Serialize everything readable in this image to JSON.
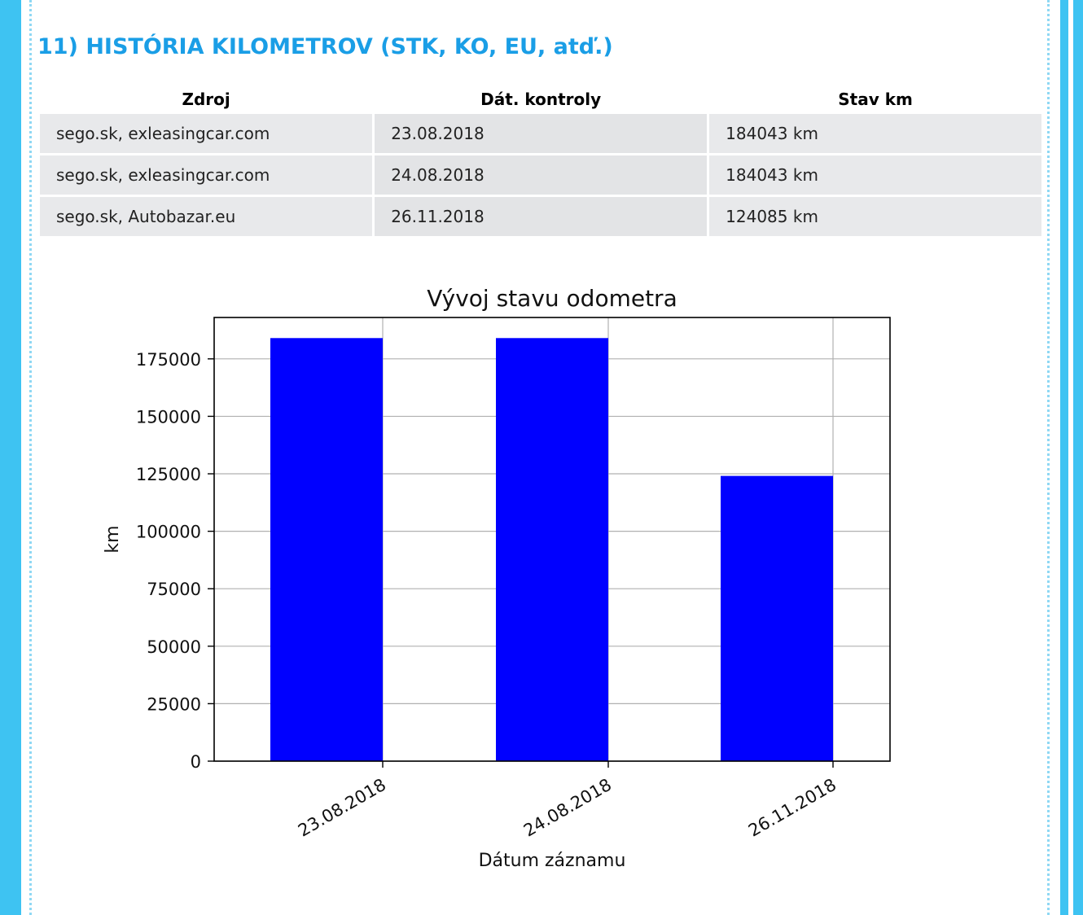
{
  "section": {
    "title": "11) HISTÓRIA KILOMETROV (STK, KO, EU, atď.)"
  },
  "table": {
    "headers": [
      "Zdroj",
      "Dát. kontroly",
      "Stav km"
    ],
    "rows": [
      [
        "sego.sk, exleasingcar.com",
        "23.08.2018",
        "184043 km"
      ],
      [
        "sego.sk, exleasingcar.com",
        "24.08.2018",
        "184043 km"
      ],
      [
        "sego.sk, Autobazar.eu",
        "26.11.2018",
        "124085 km"
      ]
    ]
  },
  "colors": {
    "accent": "#1a9ee6",
    "border": "#3ec3f2",
    "bar": "#0000ff"
  },
  "chart_data": {
    "type": "bar",
    "title": "Vývoj stavu odometra",
    "xlabel": "Dátum záznamu",
    "ylabel": "km",
    "categories": [
      "23.08.2018",
      "24.08.2018",
      "26.11.2018"
    ],
    "values": [
      184043,
      184043,
      124085
    ],
    "ylim": [
      0,
      193000
    ],
    "yticks": [
      0,
      25000,
      50000,
      75000,
      100000,
      125000,
      150000,
      175000
    ],
    "grid": true,
    "bar_color": "#0000ff"
  }
}
